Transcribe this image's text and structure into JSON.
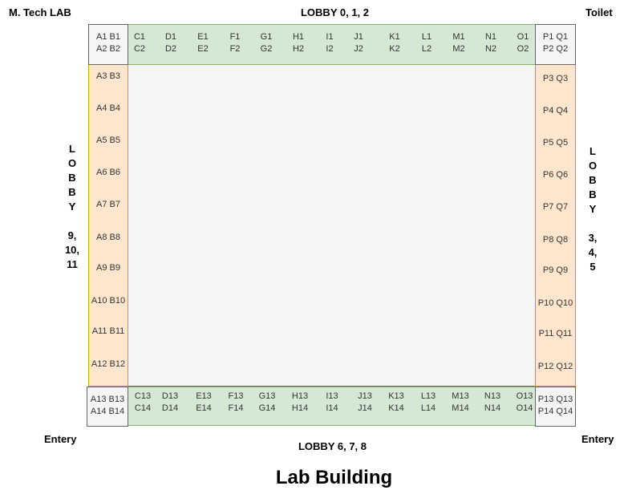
{
  "labels": {
    "top_left": "M. Tech LAB",
    "top_right": "Toilet",
    "bottom_left": "Entery",
    "bottom_right": "Entery",
    "lobby_top": "LOBBY 0, 1, 2",
    "lobby_bottom": "LOBBY 6, 7, 8",
    "lobby_left": "L\nO\nB\nB\nY\n\n9,\n10,\n11",
    "lobby_right": "L\nO\nB\nB\nY\n\n3,\n4,\n5",
    "title": "Lab Building"
  },
  "corners": {
    "top_left": [
      "A1 B1",
      "A2 B2"
    ],
    "top_right": [
      "P1 Q1",
      "P2 Q2"
    ],
    "bottom_left": [
      "A13 B13",
      "A14 B14"
    ],
    "bottom_right": [
      "P13 Q13",
      "P14 Q14"
    ]
  },
  "top_strip": [
    [
      "C1",
      "C2"
    ],
    [
      "D1",
      "D2"
    ],
    [
      "E1",
      "E2"
    ],
    [
      "F1",
      "F2"
    ],
    [
      "G1",
      "G2"
    ],
    [
      "H1",
      "H2"
    ],
    [
      "I1",
      "I2"
    ],
    [
      "J1",
      "J2"
    ],
    [
      "K1",
      "K2"
    ],
    [
      "L1",
      "L2"
    ],
    [
      "M1",
      "M2"
    ],
    [
      "N1",
      "N2"
    ],
    [
      "O1",
      "O2"
    ]
  ],
  "bottom_strip": [
    [
      "C13",
      "C14"
    ],
    [
      "D13",
      "D14"
    ],
    [
      "E13",
      "E14"
    ],
    [
      "F13",
      "F14"
    ],
    [
      "G13",
      "G14"
    ],
    [
      "H13",
      "H14"
    ],
    [
      "I13",
      "I14"
    ],
    [
      "J13",
      "J14"
    ],
    [
      "K13",
      "K14"
    ],
    [
      "L13",
      "L14"
    ],
    [
      "M13",
      "M14"
    ],
    [
      "N13",
      "N14"
    ],
    [
      "O13",
      "O14"
    ]
  ],
  "left_strip": [
    "A3 B3",
    "A4 B4",
    "A5 B5",
    "A6 B6",
    "A7 B7",
    "A8 B8",
    "A9 B9",
    "A10 B10",
    "A11 B11",
    "A12 B12"
  ],
  "right_strip": [
    "P3 Q3",
    "P4 Q4",
    "P5 Q5",
    "P6 Q6",
    "P7 Q7",
    "P8 Q8",
    "P9 Q9",
    "P10 Q10",
    "P11 Q11",
    "P12 Q12"
  ],
  "colors": {
    "green_fill": "#d5e8d4",
    "green_border": "#82b366",
    "orange_fill": "#ffe6cc",
    "orange_border": "#d79b00",
    "grey_fill": "#f5f5f5",
    "grey_border": "#666666"
  }
}
